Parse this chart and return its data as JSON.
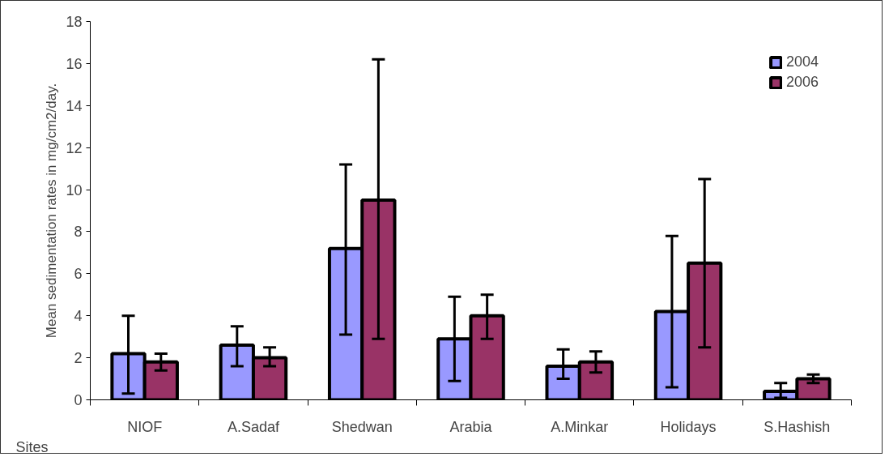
{
  "chart_data": {
    "type": "bar",
    "xlabel": "Sites",
    "ylabel": "Mean sedimentation rates in mg/cm2/day.",
    "categories": [
      "NIOF",
      "A.Sadaf",
      "Shedwan",
      "Arabia",
      "A.Minkar",
      "Holidays",
      "S.Hashish"
    ],
    "series": [
      {
        "name": "2004",
        "color": "#9999ff",
        "values": [
          2.2,
          2.6,
          7.2,
          2.9,
          1.6,
          4.2,
          0.4
        ],
        "errors": [
          [
            0.3,
            4.0
          ],
          [
            1.6,
            3.5
          ],
          [
            3.1,
            11.2
          ],
          [
            0.9,
            4.9
          ],
          [
            1.0,
            2.4
          ],
          [
            0.6,
            7.8
          ],
          [
            0.1,
            0.8
          ]
        ]
      },
      {
        "name": "2006",
        "color": "#993366",
        "values": [
          1.8,
          2.0,
          9.5,
          4.0,
          1.8,
          6.5,
          1.0
        ],
        "errors": [
          [
            1.4,
            2.2
          ],
          [
            1.6,
            2.5
          ],
          [
            2.9,
            16.2
          ],
          [
            2.9,
            5.0
          ],
          [
            1.3,
            2.3
          ],
          [
            2.5,
            10.5
          ],
          [
            0.8,
            1.2
          ]
        ]
      }
    ],
    "ylim": [
      0,
      18
    ],
    "yticks": [
      0,
      2,
      4,
      6,
      8,
      10,
      12,
      14,
      16,
      18
    ],
    "grid": false,
    "legend": "top right"
  }
}
